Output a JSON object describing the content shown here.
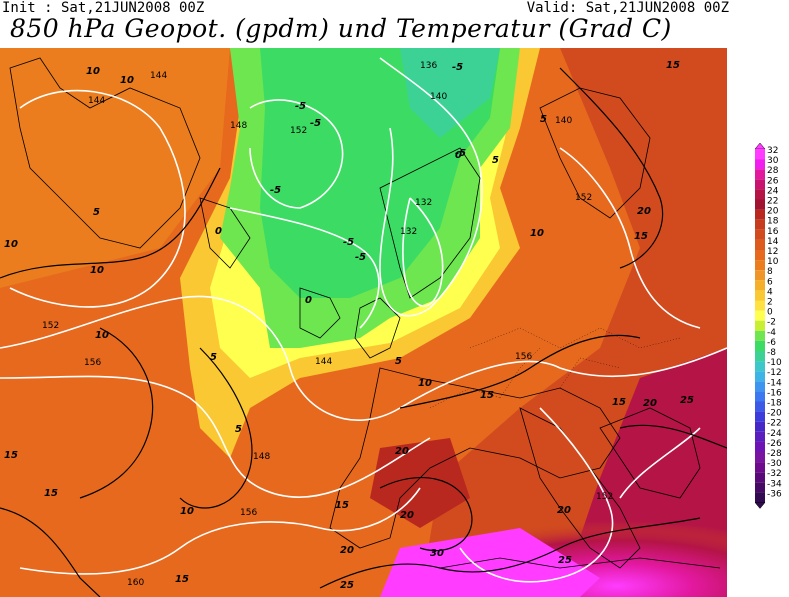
{
  "header": {
    "init": "Init : Sat,21JUN2008 00Z",
    "valid": "Valid: Sat,21JUN2008 00Z",
    "title": "850 hPa Geopot. (gpdm) und Temperatur (Grad C)"
  },
  "colors": {
    "land_bg": "#e8761c",
    "geopot_lines": "#ffffff",
    "temp_lines": "#000000"
  },
  "colorbar": {
    "labels": [
      "32",
      "30",
      "28",
      "26",
      "24",
      "22",
      "20",
      "18",
      "16",
      "14",
      "12",
      "10",
      "8",
      "6",
      "4",
      "2",
      "0",
      "-2",
      "-4",
      "-6",
      "-8",
      "-10",
      "-12",
      "-14",
      "-16",
      "-18",
      "-20",
      "-22",
      "-24",
      "-26",
      "-28",
      "-30",
      "-32",
      "-34",
      "-36"
    ],
    "colors": [
      "#ff3cff",
      "#f21ef0",
      "#e2189e",
      "#c8146e",
      "#b41446",
      "#a01432",
      "#b9281e",
      "#c83c1e",
      "#d24b1e",
      "#dc5a1e",
      "#e6691e",
      "#eb7d1e",
      "#f09628",
      "#f5af28",
      "#fac832",
      "#ffe141",
      "#ffff50",
      "#c8f032",
      "#6ee650",
      "#3cdc64",
      "#3cd296",
      "#3cc8c8",
      "#3cb4e6",
      "#3c96f0",
      "#3c78f0",
      "#3c5ae6",
      "#3c3cdc",
      "#4628c8",
      "#5a1ebe",
      "#6e14b4",
      "#7814a0",
      "#6e0a8c",
      "#5a0a78",
      "#460a64",
      "#320a50"
    ]
  },
  "map_labels": {
    "geopot": [
      "144",
      "140",
      "136",
      "132",
      "148",
      "152",
      "156",
      "160"
    ],
    "temp": [
      "-5",
      "0",
      "5",
      "10",
      "15",
      "20",
      "25",
      "30"
    ]
  }
}
